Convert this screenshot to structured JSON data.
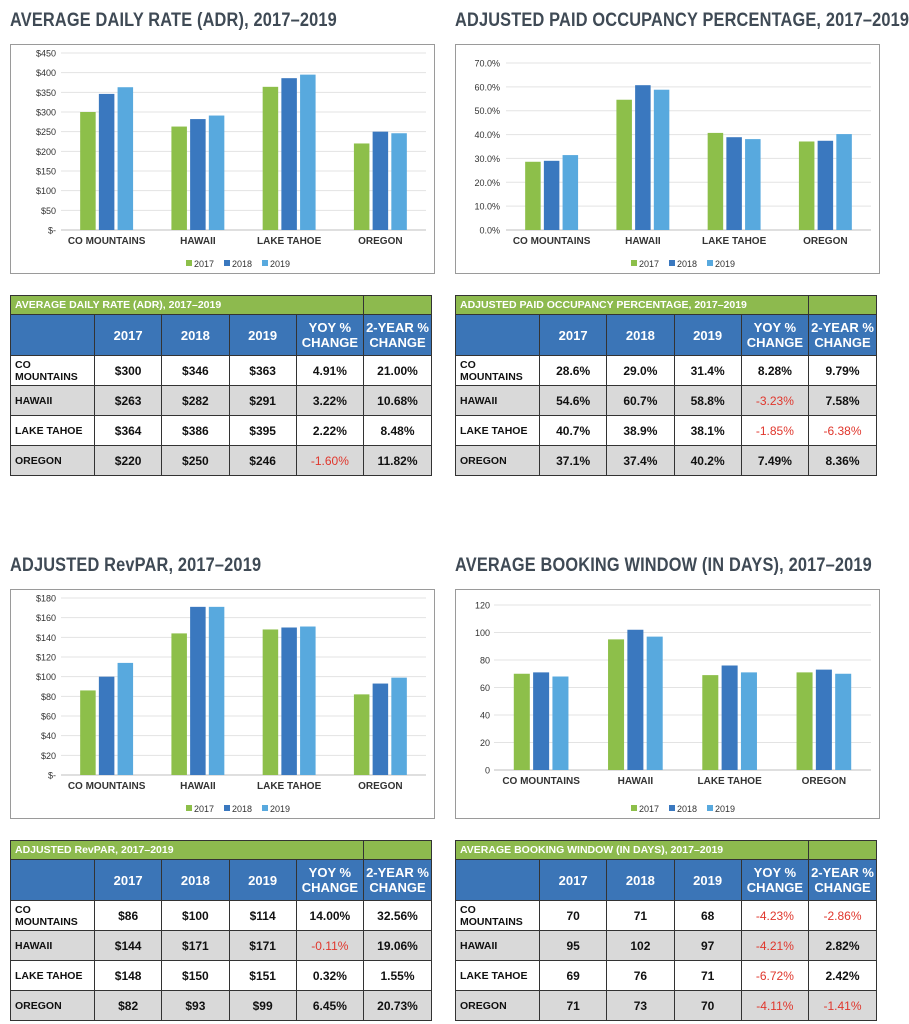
{
  "colors": {
    "y2017": "#8dbf4a",
    "y2018": "#3a78bf",
    "y2019": "#58a9de",
    "header": "#3b75b7",
    "caption": "#8dba4e",
    "negative": "#e0362c"
  },
  "panels": [
    {
      "id": "adr",
      "title": "AVERAGE DAILY RATE (ADR), 2017–2019",
      "table": {
        "caption": "AVERAGE DAILY RATE (ADR), 2017–2019",
        "headers": [
          "",
          "2017",
          "2018",
          "2019",
          "YOY % CHANGE",
          "2-YEAR % CHANGE"
        ],
        "rows": [
          [
            "CO MOUNTAINS",
            "$300",
            "$346",
            "$363",
            "4.91%",
            "21.00%"
          ],
          [
            "HAWAII",
            "$263",
            "$282",
            "$291",
            "3.22%",
            "10.68%"
          ],
          [
            "LAKE TAHOE",
            "$364",
            "$386",
            "$395",
            "2.22%",
            "8.48%"
          ],
          [
            "OREGON",
            "$220",
            "$250",
            "$246",
            "-1.60%",
            "11.82%"
          ]
        ]
      }
    },
    {
      "id": "occ",
      "title": "ADJUSTED PAID OCCUPANCY PERCENTAGE, 2017–2019",
      "table": {
        "caption": "ADJUSTED PAID OCCUPANCY PERCENTAGE, 2017–2019",
        "headers": [
          "",
          "2017",
          "2018",
          "2019",
          "YOY % CHANGE",
          "2-YEAR % CHANGE"
        ],
        "rows": [
          [
            "CO MOUNTAINS",
            "28.6%",
            "29.0%",
            "31.4%",
            "8.28%",
            "9.79%"
          ],
          [
            "HAWAII",
            "54.6%",
            "60.7%",
            "58.8%",
            "-3.23%",
            "7.58%"
          ],
          [
            "LAKE TAHOE",
            "40.7%",
            "38.9%",
            "38.1%",
            "-1.85%",
            "-6.38%"
          ],
          [
            "OREGON",
            "37.1%",
            "37.4%",
            "40.2%",
            "7.49%",
            "8.36%"
          ]
        ]
      }
    },
    {
      "id": "revpar",
      "title": "ADJUSTED RevPAR, 2017–2019",
      "table": {
        "caption": "ADJUSTED RevPAR, 2017–2019",
        "headers": [
          "",
          "2017",
          "2018",
          "2019",
          "YOY % CHANGE",
          "2-YEAR % CHANGE"
        ],
        "rows": [
          [
            "CO MOUNTAINS",
            "$86",
            "$100",
            "$114",
            "14.00%",
            "32.56%"
          ],
          [
            "HAWAII",
            "$144",
            "$171",
            "$171",
            "-0.11%",
            "19.06%"
          ],
          [
            "LAKE TAHOE",
            "$148",
            "$150",
            "$151",
            "0.32%",
            "1.55%"
          ],
          [
            "OREGON",
            "$82",
            "$93",
            "$99",
            "6.45%",
            "20.73%"
          ]
        ]
      }
    },
    {
      "id": "window",
      "title": "AVERAGE BOOKING WINDOW (IN DAYS), 2017–2019",
      "table": {
        "caption": "AVERAGE BOOKING WINDOW (IN DAYS), 2017–2019",
        "headers": [
          "",
          "2017",
          "2018",
          "2019",
          "YOY % CHANGE",
          "2-YEAR % CHANGE"
        ],
        "rows": [
          [
            "CO MOUNTAINS",
            "70",
            "71",
            "68",
            "-4.23%",
            "-2.86%"
          ],
          [
            "HAWAII",
            "95",
            "102",
            "97",
            "-4.21%",
            "2.82%"
          ],
          [
            "LAKE TAHOE",
            "69",
            "76",
            "71",
            "-6.72%",
            "2.42%"
          ],
          [
            "OREGON",
            "71",
            "73",
            "70",
            "-4.11%",
            "-1.41%"
          ]
        ]
      }
    }
  ],
  "chart_data": [
    {
      "type": "bar",
      "title": "AVERAGE DAILY RATE (ADR), 2017–2019",
      "categories": [
        "CO MOUNTAINS",
        "HAWAII",
        "LAKE TAHOE",
        "OREGON"
      ],
      "series": [
        {
          "name": "2017",
          "values": [
            300,
            263,
            364,
            220
          ]
        },
        {
          "name": "2018",
          "values": [
            346,
            282,
            386,
            250
          ]
        },
        {
          "name": "2019",
          "values": [
            363,
            291,
            395,
            246
          ]
        }
      ],
      "ylim": [
        0,
        450
      ],
      "yticks": [
        "$-",
        "$50",
        "$100",
        "$150",
        "$200",
        "$250",
        "$300",
        "$350",
        "$400",
        "$450"
      ],
      "legend": "bottom",
      "grid": true
    },
    {
      "type": "bar",
      "title": "ADJUSTED PAID OCCUPANCY PERCENTAGE, 2017–2019",
      "categories": [
        "CO MOUNTAINS",
        "HAWAII",
        "LAKE TAHOE",
        "OREGON"
      ],
      "series": [
        {
          "name": "2017",
          "values": [
            28.6,
            54.6,
            40.7,
            37.1
          ]
        },
        {
          "name": "2018",
          "values": [
            29.0,
            60.7,
            38.9,
            37.4
          ]
        },
        {
          "name": "2019",
          "values": [
            31.4,
            58.8,
            38.1,
            40.2
          ]
        }
      ],
      "ylim": [
        0,
        70
      ],
      "yticks": [
        "0.0%",
        "10.0%",
        "20.0%",
        "30.0%",
        "40.0%",
        "50.0%",
        "60.0%",
        "70.0%"
      ],
      "legend": "bottom",
      "grid": true
    },
    {
      "type": "bar",
      "title": "ADJUSTED RevPAR, 2017–2019",
      "categories": [
        "CO MOUNTAINS",
        "HAWAII",
        "LAKE TAHOE",
        "OREGON"
      ],
      "series": [
        {
          "name": "2017",
          "values": [
            86,
            144,
            148,
            82
          ]
        },
        {
          "name": "2018",
          "values": [
            100,
            171,
            150,
            93
          ]
        },
        {
          "name": "2019",
          "values": [
            114,
            171,
            151,
            99
          ]
        }
      ],
      "ylim": [
        0,
        180
      ],
      "yticks": [
        "$-",
        "$20",
        "$40",
        "$60",
        "$80",
        "$100",
        "$120",
        "$140",
        "$160",
        "$180"
      ],
      "legend": "bottom",
      "grid": true
    },
    {
      "type": "bar",
      "title": "AVERAGE BOOKING WINDOW (IN DAYS), 2017–2019",
      "categories": [
        "CO MOUNTAINS",
        "HAWAII",
        "LAKE TAHOE",
        "OREGON"
      ],
      "series": [
        {
          "name": "2017",
          "values": [
            70,
            95,
            69,
            71
          ]
        },
        {
          "name": "2018",
          "values": [
            71,
            102,
            76,
            73
          ]
        },
        {
          "name": "2019",
          "values": [
            68,
            97,
            71,
            70
          ]
        }
      ],
      "ylim": [
        0,
        120
      ],
      "yticks": [
        "0",
        "20",
        "40",
        "60",
        "80",
        "100",
        "120"
      ],
      "legend": "bottom",
      "grid": true
    }
  ]
}
